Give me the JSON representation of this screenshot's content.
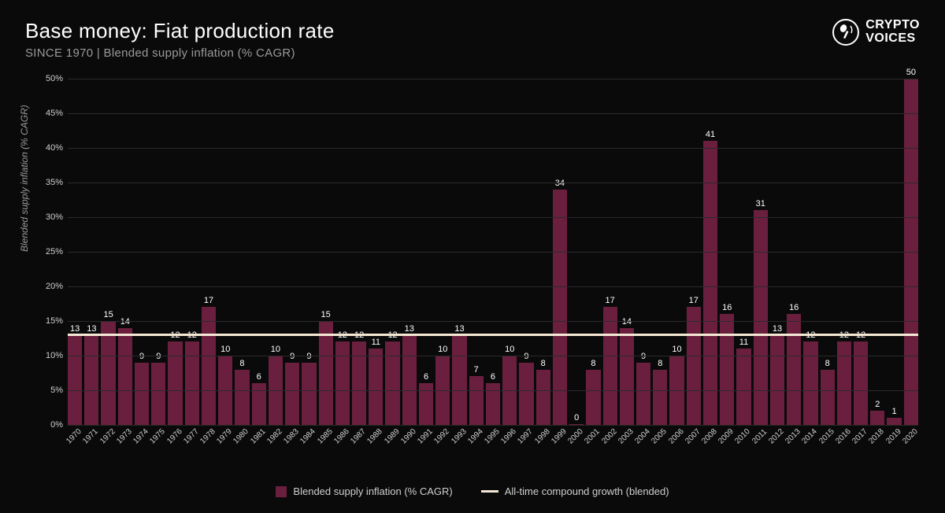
{
  "header": {
    "title": "Base money: Fiat production rate",
    "subtitle": "SINCE 1970 | Blended supply inflation (% CAGR)",
    "logo_line1": "CRYPTO",
    "logo_line2": "VOICES"
  },
  "chart": {
    "type": "bar",
    "ylabel": "Blended supply inflation (% CAGR)",
    "ylim": [
      0,
      50
    ],
    "ytick_step": 5,
    "ytick_suffix": "%",
    "grid_color": "#2a2a2a",
    "background_color": "#0a0a0a",
    "bar_color": "#6b1f3e",
    "bar_label_color": "#ffffff",
    "ref_line_value": 13,
    "ref_line_color": "#f5e9d6",
    "label_fontsize": 11,
    "axis_label_fontsize": 12,
    "years": [
      "1970",
      "1971",
      "1972",
      "1973",
      "1974",
      "1975",
      "1976",
      "1977",
      "1978",
      "1979",
      "1980",
      "1981",
      "1982",
      "1983",
      "1984",
      "1985",
      "1986",
      "1987",
      "1988",
      "1989",
      "1990",
      "1991",
      "1992",
      "1993",
      "1994",
      "1995",
      "1996",
      "1997",
      "1998",
      "1999",
      "2000",
      "2001",
      "2002",
      "2003",
      "2004",
      "2005",
      "2006",
      "2007",
      "2008",
      "2009",
      "2010",
      "2011",
      "2012",
      "2013",
      "2014",
      "2015",
      "2016",
      "2017",
      "2018",
      "2019",
      "2020"
    ],
    "values": [
      13,
      13,
      15,
      14,
      9,
      9,
      12,
      12,
      17,
      10,
      8,
      6,
      10,
      9,
      9,
      15,
      12,
      12,
      11,
      12,
      13,
      6,
      10,
      13,
      7,
      6,
      10,
      9,
      8,
      34,
      0,
      8,
      17,
      14,
      9,
      8,
      10,
      17,
      41,
      16,
      11,
      31,
      13,
      16,
      12,
      8,
      12,
      12,
      2,
      1,
      50
    ]
  },
  "legend": {
    "series_label": "Blended supply inflation (% CAGR)",
    "ref_line_label": "All-time compound growth (blended)"
  }
}
